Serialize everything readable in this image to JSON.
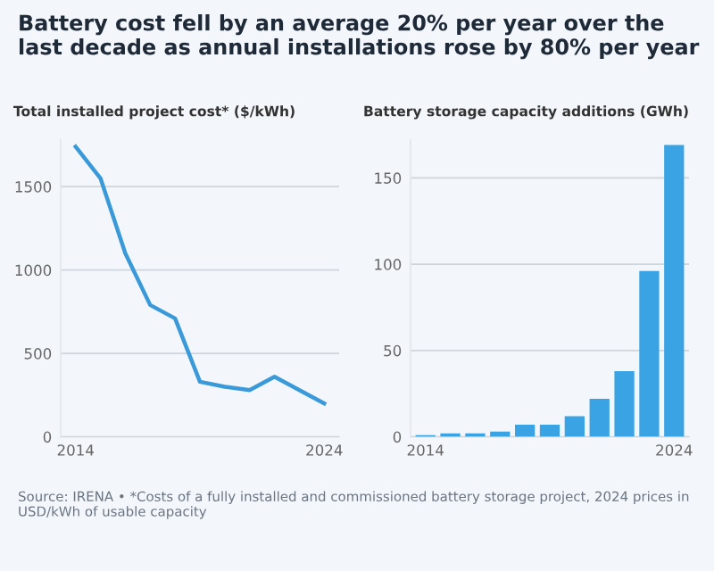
{
  "chart_data": [
    {
      "type": "line",
      "title": "Battery cost fell by an average 20% per year over the last decade as annual installations rose by 80% per year",
      "subtitle": "Total installed project cost* ($/kWh)",
      "categories": [
        "2014",
        null,
        null,
        null,
        null,
        null,
        null,
        null,
        null,
        null,
        "2024"
      ],
      "series": [
        {
          "color": "#3a9ad9",
          "values": [
            1740,
            1550,
            1100,
            790,
            710,
            330,
            300,
            280,
            360,
            280,
            200
          ]
        }
      ],
      "ylim": [
        0,
        1780
      ],
      "yticks": [
        0,
        500,
        1000,
        1500
      ],
      "grid": "y",
      "marker": "none",
      "annotations": [
        "Source: IRENA • *Costs of a fully installed and commissioned battery storage project, 2024 prices in USD/kWh of usable capacity"
      ]
    },
    {
      "type": "bar",
      "subtitle": "Battery storage capacity additions (GWh)",
      "categories": [
        "2014",
        null,
        null,
        null,
        null,
        null,
        null,
        null,
        null,
        null,
        "2024"
      ],
      "series": [
        {
          "color": "#3aa3e3",
          "values": [
            1,
            2,
            2,
            3,
            7,
            7,
            12,
            22,
            38,
            96,
            169
          ]
        }
      ],
      "ylim": [
        0,
        172
      ],
      "yticks": [
        0,
        50,
        100,
        150
      ],
      "grid": "y"
    }
  ]
}
